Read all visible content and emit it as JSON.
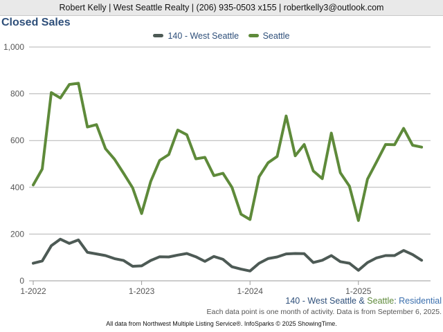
{
  "header": {
    "contact": "Robert Kelly | West Seattle Realty | (206) 935-0503 x155 | robertkelly3@outlook.com"
  },
  "chart_data": {
    "type": "line",
    "title": "Closed Sales",
    "x_tick_labels": [
      "1-2022",
      "1-2023",
      "1-2024",
      "1-2025"
    ],
    "x_tick_month_index": [
      0,
      12,
      24,
      36
    ],
    "y_ticks": [
      0,
      200,
      400,
      600,
      800,
      "1,000"
    ],
    "ylim": [
      0,
      1000
    ],
    "grid": true,
    "legend_position": "top-center",
    "x": [
      "2022-01",
      "2022-02",
      "2022-03",
      "2022-04",
      "2022-05",
      "2022-06",
      "2022-07",
      "2022-08",
      "2022-09",
      "2022-10",
      "2022-11",
      "2022-12",
      "2023-01",
      "2023-02",
      "2023-03",
      "2023-04",
      "2023-05",
      "2023-06",
      "2023-07",
      "2023-08",
      "2023-09",
      "2023-10",
      "2023-11",
      "2023-12",
      "2024-01",
      "2024-02",
      "2024-03",
      "2024-04",
      "2024-05",
      "2024-06",
      "2024-07",
      "2024-08",
      "2024-09",
      "2024-10",
      "2024-11",
      "2024-12",
      "2025-01",
      "2025-02",
      "2025-03",
      "2025-04",
      "2025-05",
      "2025-06",
      "2025-07",
      "2025-08"
    ],
    "series": [
      {
        "name": "140 - West Seattle",
        "color": "#4d5a55",
        "values": [
          75,
          85,
          150,
          178,
          160,
          175,
          122,
          115,
          108,
          95,
          87,
          62,
          64,
          87,
          103,
          102,
          110,
          117,
          103,
          83,
          104,
          92,
          60,
          50,
          42,
          75,
          95,
          102,
          115,
          117,
          116,
          78,
          88,
          108,
          82,
          75,
          45,
          78,
          98,
          108,
          108,
          130,
          112,
          88
        ]
      },
      {
        "name": "Seattle",
        "color": "#5e8a3a",
        "values": [
          410,
          478,
          805,
          782,
          840,
          845,
          658,
          668,
          565,
          520,
          460,
          398,
          288,
          425,
          515,
          540,
          645,
          625,
          522,
          528,
          450,
          460,
          400,
          285,
          262,
          445,
          505,
          532,
          705,
          535,
          583,
          470,
          437,
          632,
          462,
          405,
          258,
          435,
          508,
          583,
          582,
          652,
          580,
          572
        ]
      }
    ]
  },
  "subtitle": {
    "region": "140 - West Seattle",
    "amp": " & ",
    "seattle": "Seattle",
    "colon": ": ",
    "type": "Residential"
  },
  "note": "Each data point is one month of activity. Data is from September 6, 2025.",
  "footer": "All data from Northwest Multiple Listing Service®. InfoSparks © 2025 ShowingTime."
}
